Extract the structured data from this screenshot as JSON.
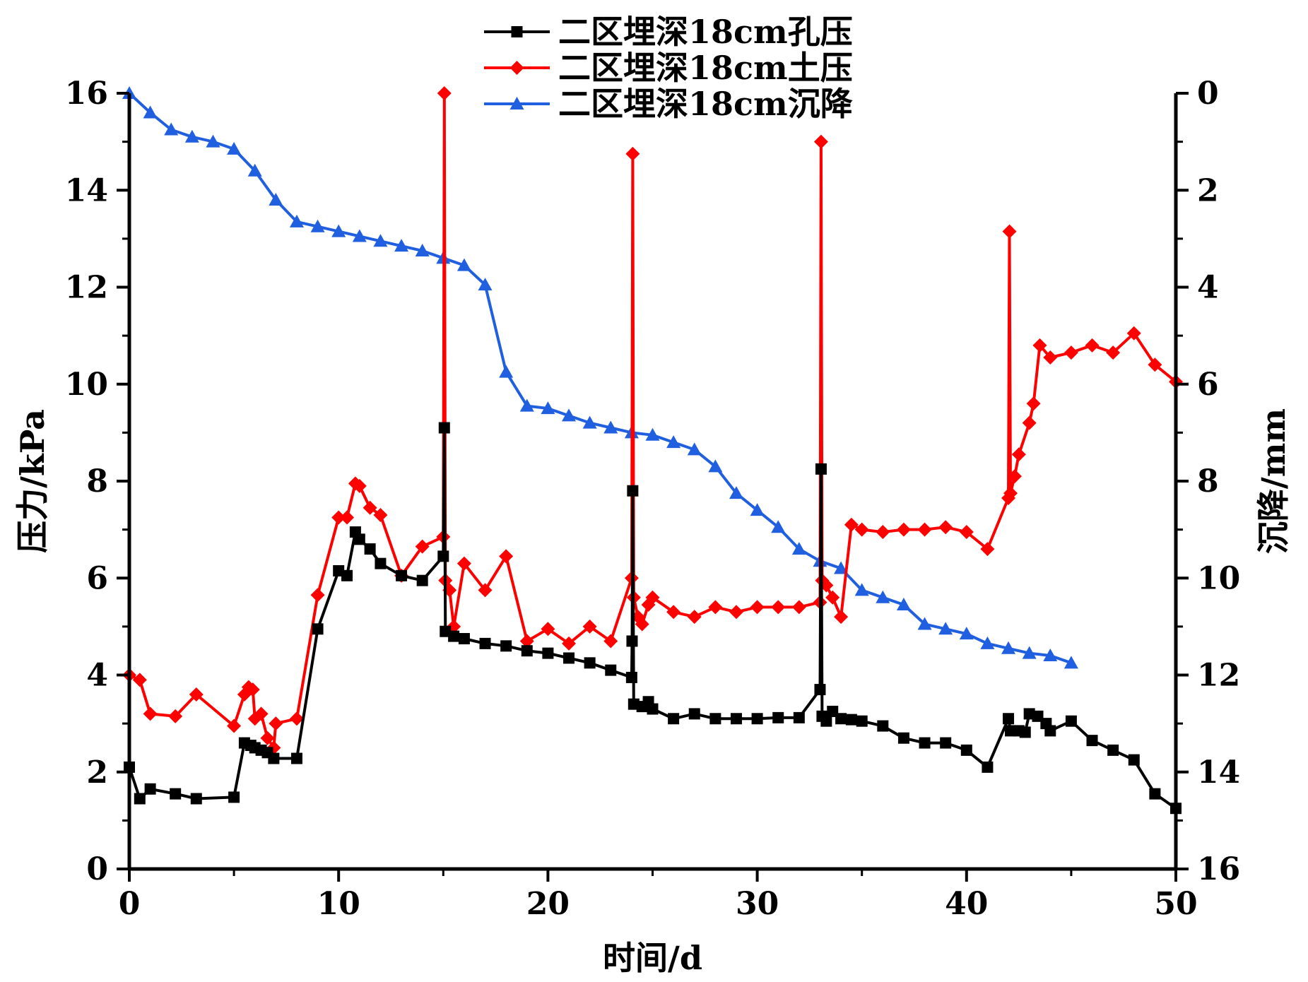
{
  "chart_data": {
    "type": "line",
    "x_axis": {
      "label": "时间/d",
      "range": [
        0,
        50
      ],
      "ticks": [
        0,
        10,
        20,
        30,
        40,
        50
      ]
    },
    "y_axis_left": {
      "label": "压力/kPa",
      "range": [
        0,
        16
      ],
      "ticks": [
        0,
        2,
        4,
        6,
        8,
        10,
        12,
        14,
        16
      ]
    },
    "y_axis_right": {
      "label": "沉降/mm",
      "range": [
        0,
        16
      ],
      "inverted": true,
      "ticks": [
        0,
        2,
        4,
        6,
        8,
        10,
        12,
        14,
        16
      ]
    },
    "grid": false,
    "legend_position": "top-center",
    "series": [
      {
        "name": "二区埋深18cm孔压",
        "axis": "left",
        "color": "#000000",
        "marker": "square",
        "points": [
          [
            0,
            2.1
          ],
          [
            0.5,
            1.45
          ],
          [
            1,
            1.65
          ],
          [
            2.2,
            1.55
          ],
          [
            3.2,
            1.45
          ],
          [
            5,
            1.48
          ],
          [
            5.5,
            2.6
          ],
          [
            5.8,
            2.55
          ],
          [
            6,
            2.5
          ],
          [
            6.3,
            2.45
          ],
          [
            6.6,
            2.4
          ],
          [
            6.9,
            2.28
          ],
          [
            8,
            2.28
          ],
          [
            9,
            4.95
          ],
          [
            10,
            6.15
          ],
          [
            10.4,
            6.05
          ],
          [
            10.8,
            6.95
          ],
          [
            11,
            6.8
          ],
          [
            11.5,
            6.6
          ],
          [
            12,
            6.3
          ],
          [
            13,
            6.05
          ],
          [
            14,
            5.95
          ],
          [
            15,
            6.45
          ],
          [
            15.05,
            9.1
          ],
          [
            15.1,
            4.9
          ],
          [
            15.5,
            4.8
          ],
          [
            16,
            4.75
          ],
          [
            17,
            4.65
          ],
          [
            18,
            4.6
          ],
          [
            19,
            4.5
          ],
          [
            20,
            4.45
          ],
          [
            21,
            4.35
          ],
          [
            22,
            4.25
          ],
          [
            23,
            4.1
          ],
          [
            24,
            3.95
          ],
          [
            24.02,
            4.7
          ],
          [
            24.05,
            7.8
          ],
          [
            24.1,
            3.4
          ],
          [
            24.5,
            3.35
          ],
          [
            24.8,
            3.45
          ],
          [
            25,
            3.3
          ],
          [
            26,
            3.1
          ],
          [
            27,
            3.2
          ],
          [
            28,
            3.1
          ],
          [
            29,
            3.1
          ],
          [
            30,
            3.1
          ],
          [
            31,
            3.12
          ],
          [
            32,
            3.12
          ],
          [
            33,
            3.7
          ],
          [
            33.05,
            8.25
          ],
          [
            33.1,
            3.15
          ],
          [
            33.3,
            3.05
          ],
          [
            33.6,
            3.25
          ],
          [
            34,
            3.1
          ],
          [
            34.5,
            3.08
          ],
          [
            35,
            3.05
          ],
          [
            36,
            2.95
          ],
          [
            37,
            2.7
          ],
          [
            38,
            2.6
          ],
          [
            39,
            2.6
          ],
          [
            40,
            2.45
          ],
          [
            41,
            2.1
          ],
          [
            42,
            3.1
          ],
          [
            42.1,
            2.85
          ],
          [
            42.5,
            2.85
          ],
          [
            42.8,
            2.82
          ],
          [
            43,
            3.2
          ],
          [
            43.4,
            3.15
          ],
          [
            43.8,
            3.0
          ],
          [
            44,
            2.85
          ],
          [
            45,
            3.05
          ],
          [
            46,
            2.65
          ],
          [
            47,
            2.45
          ],
          [
            48,
            2.25
          ],
          [
            49,
            1.55
          ],
          [
            50,
            1.25
          ]
        ]
      },
      {
        "name": "二区埋深18cm土压",
        "axis": "left",
        "color": "#ff0000",
        "marker": "diamond",
        "points": [
          [
            0,
            4.0
          ],
          [
            0.5,
            3.9
          ],
          [
            1,
            3.2
          ],
          [
            2.2,
            3.15
          ],
          [
            3.2,
            3.6
          ],
          [
            5,
            2.95
          ],
          [
            5.5,
            3.6
          ],
          [
            5.7,
            3.75
          ],
          [
            5.9,
            3.7
          ],
          [
            6,
            3.1
          ],
          [
            6.3,
            3.2
          ],
          [
            6.6,
            2.7
          ],
          [
            6.9,
            2.5
          ],
          [
            7,
            3.0
          ],
          [
            8,
            3.1
          ],
          [
            9,
            5.65
          ],
          [
            10,
            7.25
          ],
          [
            10.4,
            7.25
          ],
          [
            10.8,
            7.95
          ],
          [
            11,
            7.9
          ],
          [
            11.5,
            7.45
          ],
          [
            12,
            7.3
          ],
          [
            13,
            6.05
          ],
          [
            14,
            6.65
          ],
          [
            15,
            6.85
          ],
          [
            15.05,
            16.0
          ],
          [
            15.1,
            5.95
          ],
          [
            15.3,
            5.75
          ],
          [
            15.5,
            5.0
          ],
          [
            16,
            6.3
          ],
          [
            17,
            5.75
          ],
          [
            18,
            6.45
          ],
          [
            19,
            4.7
          ],
          [
            20,
            4.95
          ],
          [
            21,
            4.65
          ],
          [
            22,
            5.0
          ],
          [
            23,
            4.7
          ],
          [
            24,
            6.0
          ],
          [
            24.05,
            14.75
          ],
          [
            24.1,
            5.6
          ],
          [
            24.3,
            5.2
          ],
          [
            24.5,
            5.05
          ],
          [
            24.8,
            5.45
          ],
          [
            25,
            5.6
          ],
          [
            26,
            5.3
          ],
          [
            27,
            5.2
          ],
          [
            28,
            5.4
          ],
          [
            29,
            5.3
          ],
          [
            30,
            5.4
          ],
          [
            31,
            5.4
          ],
          [
            32,
            5.4
          ],
          [
            33,
            5.5
          ],
          [
            33.05,
            15.0
          ],
          [
            33.1,
            5.95
          ],
          [
            33.3,
            5.85
          ],
          [
            33.6,
            5.6
          ],
          [
            34,
            5.2
          ],
          [
            34.5,
            7.1
          ],
          [
            35,
            7.0
          ],
          [
            36,
            6.95
          ],
          [
            37,
            7.0
          ],
          [
            38,
            7.0
          ],
          [
            39,
            7.05
          ],
          [
            40,
            6.95
          ],
          [
            41,
            6.6
          ],
          [
            42,
            7.65
          ],
          [
            42.05,
            13.15
          ],
          [
            42.1,
            7.75
          ],
          [
            42.3,
            8.1
          ],
          [
            42.5,
            8.55
          ],
          [
            43,
            9.2
          ],
          [
            43.2,
            9.6
          ],
          [
            43.5,
            10.8
          ],
          [
            44,
            10.55
          ],
          [
            45,
            10.65
          ],
          [
            46,
            10.8
          ],
          [
            47,
            10.65
          ],
          [
            48,
            11.05
          ],
          [
            49,
            10.4
          ],
          [
            50,
            10.05
          ]
        ]
      },
      {
        "name": "二区埋深18cm沉降",
        "axis": "right",
        "color": "#1f5fe0",
        "marker": "triangle",
        "points": [
          [
            0,
            0.0
          ],
          [
            1,
            0.4
          ],
          [
            2,
            0.75
          ],
          [
            3,
            0.9
          ],
          [
            4,
            1.0
          ],
          [
            5,
            1.15
          ],
          [
            6,
            1.6
          ],
          [
            7,
            2.2
          ],
          [
            8,
            2.65
          ],
          [
            9,
            2.75
          ],
          [
            10,
            2.85
          ],
          [
            11,
            2.95
          ],
          [
            12,
            3.05
          ],
          [
            13,
            3.15
          ],
          [
            14,
            3.25
          ],
          [
            15,
            3.4
          ],
          [
            16,
            3.55
          ],
          [
            17,
            3.95
          ],
          [
            18,
            5.75
          ],
          [
            19,
            6.45
          ],
          [
            20,
            6.5
          ],
          [
            21,
            6.65
          ],
          [
            22,
            6.8
          ],
          [
            23,
            6.9
          ],
          [
            24,
            7.0
          ],
          [
            25,
            7.05
          ],
          [
            26,
            7.2
          ],
          [
            27,
            7.35
          ],
          [
            28,
            7.7
          ],
          [
            29,
            8.25
          ],
          [
            30,
            8.6
          ],
          [
            31,
            8.95
          ],
          [
            32,
            9.4
          ],
          [
            33,
            9.65
          ],
          [
            34,
            9.8
          ],
          [
            35,
            10.25
          ],
          [
            36,
            10.4
          ],
          [
            37,
            10.55
          ],
          [
            38,
            10.95
          ],
          [
            39,
            11.05
          ],
          [
            40,
            11.15
          ],
          [
            41,
            11.35
          ],
          [
            42,
            11.45
          ],
          [
            43,
            11.55
          ],
          [
            44,
            11.6
          ],
          [
            45,
            11.75
          ]
        ]
      }
    ]
  }
}
